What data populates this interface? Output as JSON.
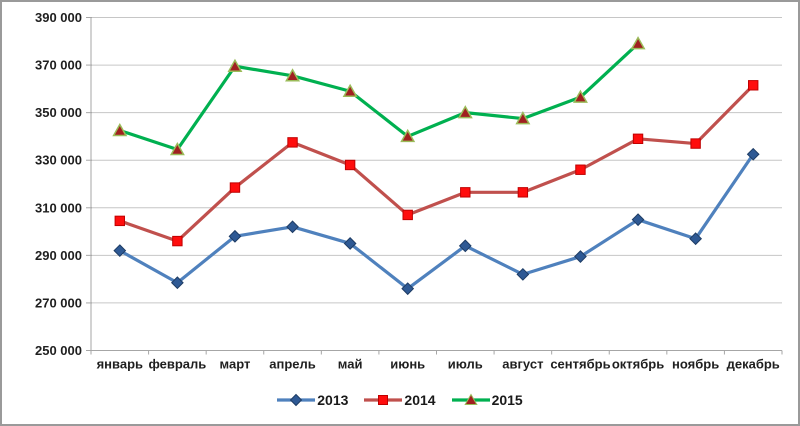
{
  "frame": {
    "border_color": "#9a9a9a",
    "background": "#ffffff"
  },
  "chart_data": {
    "type": "line",
    "title": "",
    "xlabel": "",
    "ylabel": "",
    "categories": [
      "январь",
      "февраль",
      "март",
      "апрель",
      "май",
      "июнь",
      "июль",
      "август",
      "сентябрь",
      "октябрь",
      "ноябрь",
      "декабрь"
    ],
    "series": [
      {
        "name": "2013",
        "marker": "diamond",
        "line_color": "#4F81BD",
        "marker_fill": "#2E5994",
        "marker_stroke": "#1E3C64",
        "values": [
          292000,
          278500,
          298000,
          302000,
          295000,
          276000,
          294000,
          282000,
          289500,
          305000,
          297000,
          332500
        ]
      },
      {
        "name": "2014",
        "marker": "square",
        "line_color": "#C0504D",
        "marker_fill": "#FF0D0D",
        "marker_stroke": "#C00000",
        "values": [
          304500,
          296000,
          318500,
          337500,
          328000,
          307000,
          316500,
          316500,
          326000,
          339000,
          337000,
          361500
        ]
      },
      {
        "name": "2015",
        "marker": "triangle",
        "line_color": "#00B050",
        "marker_fill": "#A02020",
        "marker_stroke": "#9BBB59",
        "values": [
          342500,
          334500,
          369500,
          365500,
          359000,
          340000,
          350000,
          347500,
          356500,
          379000,
          null,
          null
        ]
      }
    ],
    "ylim": [
      250000,
      390000
    ],
    "y_tick_step": 20000,
    "y_tick_labels": [
      "250 000",
      "270 000",
      "290 000",
      "310 000",
      "330 000",
      "350 000",
      "370 000",
      "390 000"
    ],
    "grid": true,
    "gridline_color": "#C6C6C6",
    "axis_color": "#A6A6A6",
    "label_color": "#1F1F1F",
    "legend_position": "bottom"
  }
}
